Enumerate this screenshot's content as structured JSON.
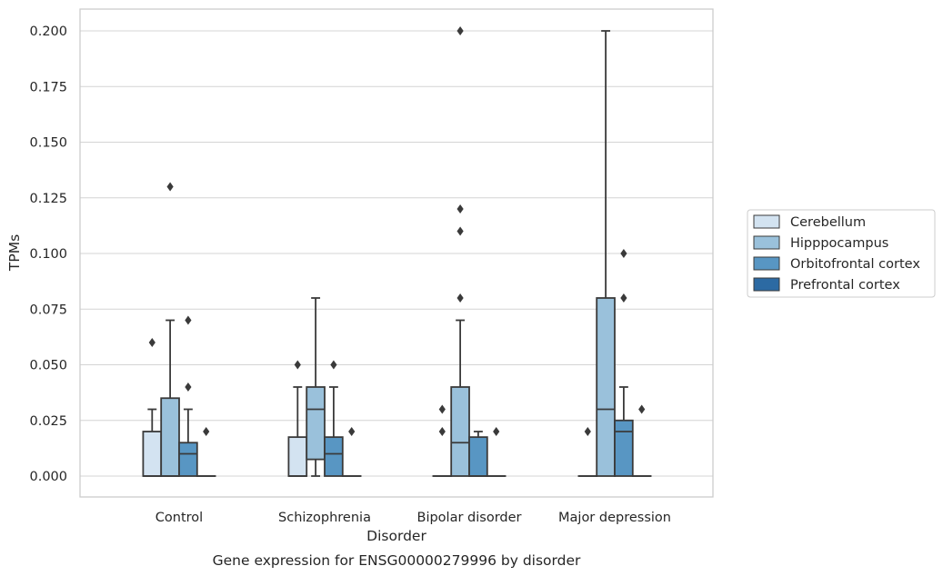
{
  "chart_data": {
    "type": "box",
    "title": "",
    "caption": "Gene expression for ENSG00000279996 by disorder",
    "xlabel": "Disorder",
    "ylabel": "TPMs",
    "ylim": [
      -0.01,
      0.21
    ],
    "yticks": [
      "0.000",
      "0.025",
      "0.050",
      "0.075",
      "0.100",
      "0.125",
      "0.150",
      "0.175",
      "0.200"
    ],
    "grid": "horizontal",
    "legend_position": "right",
    "categories": [
      "Control",
      "Schizophrenia",
      "Bipolar disorder",
      "Major depression"
    ],
    "series": [
      {
        "name": "Cerebellum",
        "color": "#d3e3f1",
        "boxes": [
          {
            "min": 0,
            "q1": 0,
            "median": 0,
            "q3": 0.02,
            "max": 0.03,
            "outliers": [
              0.06
            ]
          },
          {
            "min": 0,
            "q1": 0,
            "median": 0,
            "q3": 0.0175,
            "max": 0.04,
            "outliers": [
              0.05
            ]
          },
          {
            "min": 0,
            "q1": 0,
            "median": 0,
            "q3": 0,
            "max": 0,
            "outliers": [
              0.02,
              0.03
            ]
          },
          {
            "min": 0,
            "q1": 0,
            "median": 0,
            "q3": 0,
            "max": 0,
            "outliers": [
              0.02
            ]
          }
        ]
      },
      {
        "name": "Hipppocampus",
        "color": "#9ac1db",
        "boxes": [
          {
            "min": 0,
            "q1": 0,
            "median": 0,
            "q3": 0.035,
            "max": 0.07,
            "outliers": [
              0.13
            ]
          },
          {
            "min": 0,
            "q1": 0.0075,
            "median": 0.03,
            "q3": 0.04,
            "max": 0.08,
            "outliers": []
          },
          {
            "min": 0,
            "q1": 0,
            "median": 0.015,
            "q3": 0.04,
            "max": 0.07,
            "outliers": [
              0.08,
              0.11,
              0.12,
              0.2
            ]
          },
          {
            "min": 0,
            "q1": 0,
            "median": 0.03,
            "q3": 0.08,
            "max": 0.2,
            "outliers": []
          }
        ]
      },
      {
        "name": "Orbitofrontal cortex",
        "color": "#5896c3",
        "boxes": [
          {
            "min": 0,
            "q1": 0,
            "median": 0.01,
            "q3": 0.015,
            "max": 0.03,
            "outliers": [
              0.04,
              0.07
            ]
          },
          {
            "min": 0,
            "q1": 0,
            "median": 0.01,
            "q3": 0.0175,
            "max": 0.04,
            "outliers": [
              0.05
            ]
          },
          {
            "min": 0,
            "q1": 0,
            "median": 0,
            "q3": 0.0175,
            "max": 0.02,
            "outliers": []
          },
          {
            "min": 0,
            "q1": 0,
            "median": 0.02,
            "q3": 0.025,
            "max": 0.04,
            "outliers": [
              0.08,
              0.1
            ]
          }
        ]
      },
      {
        "name": "Prefrontal cortex",
        "color": "#2c6aa3",
        "boxes": [
          {
            "min": 0,
            "q1": 0,
            "median": 0,
            "q3": 0,
            "max": 0,
            "outliers": [
              0.02
            ]
          },
          {
            "min": 0,
            "q1": 0,
            "median": 0,
            "q3": 0,
            "max": 0,
            "outliers": [
              0.02
            ]
          },
          {
            "min": 0,
            "q1": 0,
            "median": 0,
            "q3": 0,
            "max": 0,
            "outliers": [
              0.02
            ]
          },
          {
            "min": 0,
            "q1": 0,
            "median": 0,
            "q3": 0,
            "max": 0,
            "outliers": [
              0.03
            ]
          }
        ]
      }
    ]
  }
}
